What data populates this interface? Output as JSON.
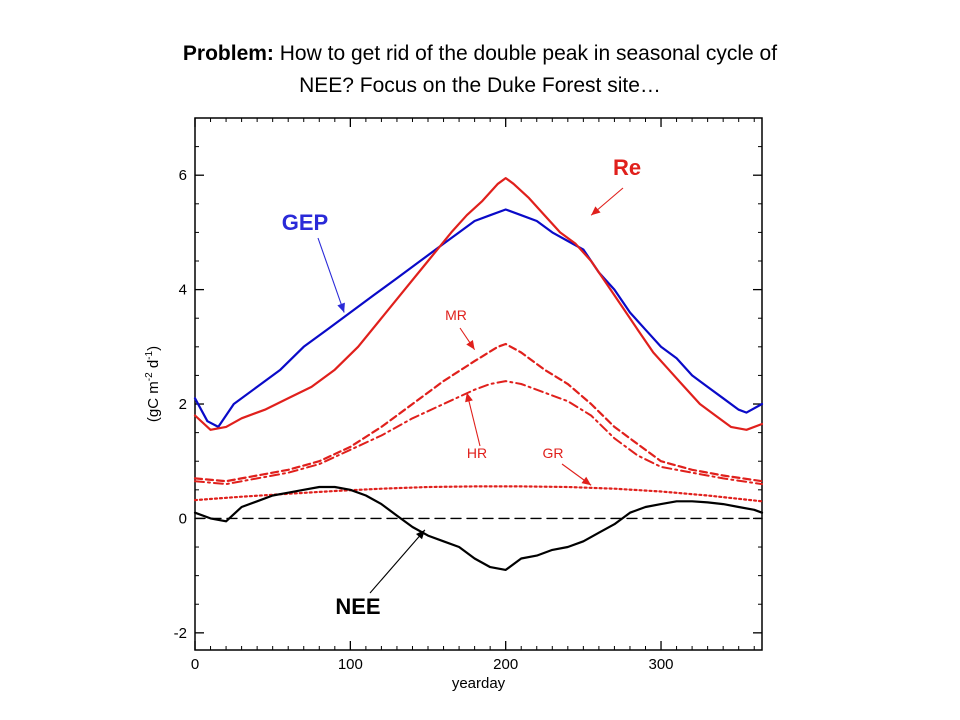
{
  "slide": {
    "title_bold": "Problem:",
    "title_rest": "How to get rid of the double peak in seasonal cycle of",
    "title_line2": "NEE?   Focus on the Duke Forest site…"
  },
  "chart_data": {
    "type": "line",
    "xlabel": "yearday",
    "ylabel": "(gC m-2 d-1)",
    "ylabel_parts": {
      "pre": "(gC m",
      "sup1": "-2",
      "mid": " d",
      "sup2": "-1",
      "post": ")"
    },
    "xlim": [
      0,
      365
    ],
    "ylim": [
      -2.3,
      7.0
    ],
    "xticks": [
      0,
      100,
      200,
      300
    ],
    "yticks": [
      -2,
      0,
      2,
      4,
      6
    ],
    "grid": false,
    "colors": {
      "GEP": "#0a0ac8",
      "Re": "#e0201c",
      "NEE": "#000000",
      "zero": "#000000"
    },
    "series": [
      {
        "name": "GEP",
        "color": "#0a0ac8",
        "style": "solid",
        "x": [
          0,
          8,
          15,
          25,
          40,
          55,
          70,
          85,
          100,
          115,
          130,
          145,
          160,
          170,
          180,
          190,
          200,
          210,
          220,
          230,
          240,
          250,
          260,
          270,
          280,
          290,
          300,
          310,
          320,
          330,
          340,
          350,
          355,
          365
        ],
        "values": [
          2.1,
          1.7,
          1.6,
          2.0,
          2.3,
          2.6,
          3.0,
          3.3,
          3.6,
          3.9,
          4.2,
          4.5,
          4.8,
          5.0,
          5.2,
          5.3,
          5.4,
          5.3,
          5.2,
          5.0,
          4.85,
          4.7,
          4.3,
          4.0,
          3.6,
          3.3,
          3.0,
          2.8,
          2.5,
          2.3,
          2.1,
          1.9,
          1.85,
          2.0
        ]
      },
      {
        "name": "Re",
        "color": "#e0201c",
        "style": "solid",
        "x": [
          0,
          10,
          20,
          30,
          45,
          60,
          75,
          90,
          105,
          120,
          135,
          150,
          165,
          175,
          185,
          195,
          200,
          205,
          215,
          225,
          235,
          245,
          255,
          265,
          275,
          285,
          295,
          305,
          315,
          325,
          335,
          345,
          355,
          365
        ],
        "values": [
          1.8,
          1.55,
          1.6,
          1.75,
          1.9,
          2.1,
          2.3,
          2.6,
          3.0,
          3.5,
          4.0,
          4.5,
          5.0,
          5.3,
          5.55,
          5.85,
          5.95,
          5.85,
          5.6,
          5.3,
          5.0,
          4.8,
          4.5,
          4.1,
          3.7,
          3.3,
          2.9,
          2.6,
          2.3,
          2.0,
          1.8,
          1.6,
          1.55,
          1.65
        ]
      },
      {
        "name": "MR",
        "color": "#e0201c",
        "style": "dashed",
        "x": [
          0,
          20,
          40,
          60,
          80,
          100,
          120,
          140,
          160,
          180,
          195,
          200,
          210,
          225,
          240,
          255,
          270,
          285,
          300,
          320,
          340,
          365
        ],
        "values": [
          0.7,
          0.65,
          0.75,
          0.85,
          1.0,
          1.25,
          1.6,
          2.0,
          2.4,
          2.75,
          3.0,
          3.05,
          2.9,
          2.6,
          2.35,
          2.0,
          1.6,
          1.3,
          1.0,
          0.85,
          0.75,
          0.65
        ]
      },
      {
        "name": "HR",
        "color": "#e0201c",
        "style": "dashdot",
        "x": [
          0,
          20,
          40,
          60,
          80,
          100,
          120,
          140,
          160,
          180,
          190,
          200,
          210,
          225,
          240,
          255,
          270,
          285,
          300,
          320,
          340,
          365
        ],
        "values": [
          0.65,
          0.6,
          0.7,
          0.8,
          0.95,
          1.2,
          1.45,
          1.75,
          2.0,
          2.25,
          2.35,
          2.4,
          2.35,
          2.2,
          2.05,
          1.8,
          1.4,
          1.1,
          0.9,
          0.8,
          0.7,
          0.6
        ]
      },
      {
        "name": "GR",
        "color": "#e0201c",
        "style": "dotted",
        "x": [
          0,
          30,
          60,
          90,
          120,
          150,
          180,
          210,
          240,
          270,
          300,
          330,
          365
        ],
        "values": [
          0.32,
          0.38,
          0.43,
          0.48,
          0.52,
          0.55,
          0.56,
          0.56,
          0.55,
          0.52,
          0.47,
          0.4,
          0.3
        ]
      },
      {
        "name": "NEE",
        "color": "#000000",
        "style": "solid",
        "x": [
          0,
          10,
          20,
          30,
          40,
          50,
          60,
          70,
          80,
          90,
          100,
          110,
          120,
          130,
          140,
          150,
          160,
          170,
          180,
          190,
          200,
          210,
          220,
          230,
          240,
          250,
          260,
          270,
          280,
          290,
          300,
          310,
          320,
          330,
          340,
          350,
          360,
          365
        ],
        "values": [
          0.1,
          0.0,
          -0.05,
          0.2,
          0.3,
          0.4,
          0.45,
          0.5,
          0.55,
          0.55,
          0.5,
          0.4,
          0.25,
          0.05,
          -0.15,
          -0.3,
          -0.4,
          -0.5,
          -0.7,
          -0.85,
          -0.9,
          -0.7,
          -0.65,
          -0.55,
          -0.5,
          -0.4,
          -0.25,
          -0.1,
          0.1,
          0.2,
          0.25,
          0.3,
          0.3,
          0.28,
          0.25,
          0.2,
          0.15,
          0.1
        ]
      },
      {
        "name": "zero",
        "color": "#000000",
        "style": "longdash",
        "x": [
          0,
          365
        ],
        "values": [
          0,
          0
        ]
      }
    ],
    "annotations": [
      {
        "text": "Re",
        "color": "#e0201c",
        "bold": true,
        "size": "large",
        "pointer": true
      },
      {
        "text": "GEP",
        "color": "#2a2ad8",
        "bold": true,
        "size": "large",
        "pointer": true
      },
      {
        "text": "MR",
        "color": "#e0201c",
        "bold": false,
        "size": "small",
        "pointer": true
      },
      {
        "text": "HR",
        "color": "#e0201c",
        "bold": false,
        "size": "small",
        "pointer": true
      },
      {
        "text": "GR",
        "color": "#e0201c",
        "bold": false,
        "size": "small",
        "pointer": true
      },
      {
        "text": "NEE",
        "color": "#000000",
        "bold": true,
        "size": "large",
        "pointer": true
      }
    ]
  }
}
